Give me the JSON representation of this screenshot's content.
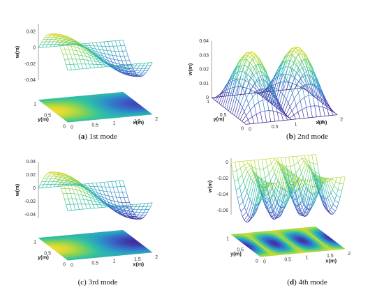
{
  "chart_data": [
    {
      "type": "surface",
      "panel": "a",
      "caption_letter": "a",
      "caption_text": "1st mode",
      "xlabel": "x(m)",
      "ylabel": "y(m)",
      "zlabel": "w(m)",
      "x_ticks": [
        "0",
        "0.5",
        "1",
        "1.5",
        "2"
      ],
      "y_ticks": [
        "0",
        "0.5",
        "1"
      ],
      "z_ticks": [
        "-0.04",
        "-0.02",
        "0",
        "0.02"
      ],
      "xlim": [
        0,
        2
      ],
      "ylim": [
        0,
        1
      ],
      "zlim": [
        -0.04,
        0.03
      ],
      "mode_shape": {
        "m": 1,
        "n": 1,
        "amplitude": 0.03,
        "form": "cos(pi*x/2)*sin(pi*y)"
      },
      "contour_projection": true
    },
    {
      "type": "surface",
      "panel": "b",
      "caption_letter": "b",
      "caption_text": "2nd mode",
      "xlabel": "x(m)",
      "ylabel": "y(m)",
      "zlabel": "w(m)",
      "x_ticks": [
        "0",
        "0.5",
        "1",
        "1.5",
        "2"
      ],
      "y_ticks": [
        "0",
        "0.5",
        "1"
      ],
      "z_ticks": [
        "0",
        "0.01",
        "0.02",
        "0.03",
        "0.04"
      ],
      "xlim": [
        0,
        2
      ],
      "ylim": [
        0,
        1
      ],
      "zlim": [
        0,
        0.04
      ],
      "mode_shape": {
        "m": 2,
        "n": 1,
        "amplitude": 0.04,
        "form": "|sin(pi*x)|*sin(pi*y)"
      },
      "contour_projection": false
    },
    {
      "type": "surface",
      "panel": "c",
      "caption_letter": "c",
      "caption_text": "3rd mode",
      "xlabel": "x(m)",
      "ylabel": "y(m)",
      "zlabel": "w(m)",
      "x_ticks": [
        "0",
        "0.5",
        "1",
        "1.5",
        "2"
      ],
      "y_ticks": [
        "0",
        "0.5",
        "1"
      ],
      "z_ticks": [
        "-0.04",
        "-0.02",
        "0",
        "0.02",
        "0.04"
      ],
      "xlim": [
        0,
        2
      ],
      "ylim": [
        0,
        1
      ],
      "zlim": [
        -0.045,
        0.04
      ],
      "mode_shape": {
        "m": 1,
        "n": 1,
        "amplitude": 0.04,
        "form": "cos(pi*x/2)*sin(pi*y)"
      },
      "contour_projection": true
    },
    {
      "type": "surface",
      "panel": "d",
      "caption_letter": "d",
      "caption_text": "4th mode",
      "xlabel": "x(m)",
      "ylabel": "y(m)",
      "zlabel": "w(m)",
      "x_ticks": [
        "0",
        "0.5",
        "1",
        "1.5",
        "2"
      ],
      "y_ticks": [
        "0",
        "0.5",
        "1"
      ],
      "z_ticks": [
        "-0.06",
        "-0.04",
        "-0.02",
        "0"
      ],
      "xlim": [
        0,
        2
      ],
      "ylim": [
        0,
        1
      ],
      "zlim": [
        -0.065,
        0.005
      ],
      "mode_shape": {
        "m": 3,
        "n": 1,
        "amplitude": 0.06,
        "form": "-|cos(3*pi*x/2)|*sin(pi*y)"
      },
      "contour_projection": true
    }
  ],
  "colors": {
    "colormap": [
      "#3e1a8a",
      "#3a5bc4",
      "#2a95c9",
      "#2fc2a0",
      "#8ad450",
      "#f0dc2a"
    ]
  }
}
